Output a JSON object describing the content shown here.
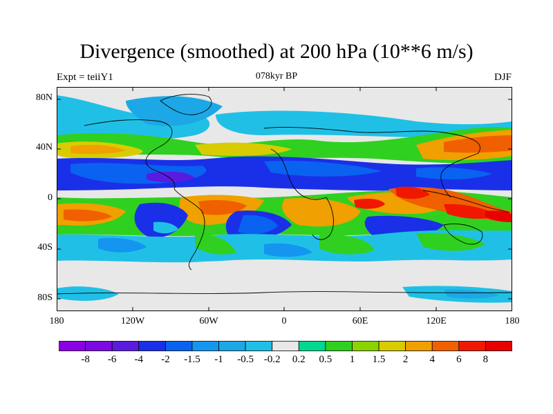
{
  "header": {
    "title": "Divergence (smoothed) at 200 hPa (10**6 m/s)",
    "left_label": "Expt = teiiY1",
    "center_label": "078kyr BP",
    "right_label": "DJF"
  },
  "axes": {
    "lat_labels": [
      "80N",
      "40N",
      "0",
      "40S",
      "80S"
    ],
    "lon_labels": [
      "180",
      "120W",
      "60W",
      "0",
      "60E",
      "120E",
      "180"
    ]
  },
  "colorbar": {
    "labels": [
      "-8",
      "-6",
      "-4",
      "-2",
      "-1.5",
      "-1",
      "-0.5",
      "-0.2",
      "0.2",
      "0.5",
      "1",
      "1.5",
      "2",
      "4",
      "6",
      "8"
    ],
    "colors": [
      "#8a00e6",
      "#7a0ae0",
      "#5a1ae0",
      "#1a30e8",
      "#0a62f0",
      "#1496f0",
      "#1ca8e6",
      "#20c0e6",
      "#e8e8e8",
      "#00d890",
      "#30d020",
      "#8cd400",
      "#d8cc00",
      "#f0a000",
      "#f06000",
      "#f01800",
      "#e80000"
    ]
  },
  "map_colors": {
    "neutral": "#e8e8e8",
    "ocean_bg": "#20c0e6"
  }
}
